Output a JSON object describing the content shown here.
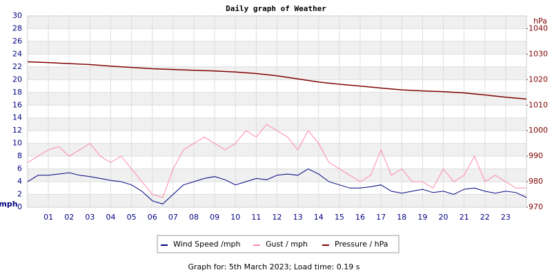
{
  "chart_data": {
    "type": "line",
    "title": "Daily graph of Weather",
    "ylabel": "mph",
    "y2label": "hPa",
    "x": [
      0,
      0.5,
      1,
      1.5,
      2,
      2.5,
      3,
      3.5,
      4,
      4.5,
      5,
      5.5,
      6,
      6.5,
      7,
      7.5,
      8,
      8.5,
      9,
      9.5,
      10,
      10.5,
      11,
      11.5,
      12,
      12.5,
      13,
      13.5,
      14,
      14.5,
      15,
      15.5,
      16,
      16.5,
      17,
      17.5,
      18,
      18.5,
      19,
      19.5,
      20,
      20.5,
      21,
      21.5,
      22,
      22.5,
      23,
      23.5,
      24
    ],
    "xlim": [
      0,
      24
    ],
    "xticks": [
      {
        "value": 1,
        "label": "01"
      },
      {
        "value": 2,
        "label": "02"
      },
      {
        "value": 3,
        "label": "03"
      },
      {
        "value": 4,
        "label": "04"
      },
      {
        "value": 5,
        "label": "05"
      },
      {
        "value": 6,
        "label": "06"
      },
      {
        "value": 7,
        "label": "07"
      },
      {
        "value": 8,
        "label": "08"
      },
      {
        "value": 9,
        "label": "09"
      },
      10,
      11,
      12,
      13,
      14,
      15,
      16,
      17,
      18,
      19,
      20,
      21,
      22,
      23
    ],
    "ylim": [
      0,
      30
    ],
    "yticks": [
      0,
      2,
      4,
      6,
      8,
      10,
      12,
      14,
      16,
      18,
      20,
      22,
      24,
      26,
      28,
      30
    ],
    "y2lim": [
      970,
      1045
    ],
    "y2ticks": [
      970,
      980,
      990,
      1000,
      1010,
      1020,
      1030,
      1040
    ],
    "grid": true,
    "bands": true,
    "series": [
      {
        "name": "Wind Speed /mph",
        "color": "#000080",
        "values": [
          4,
          5,
          5,
          5.2,
          5.4,
          5,
          4.8,
          4.5,
          4.2,
          4,
          3.5,
          2.5,
          1,
          0.5,
          2,
          3.5,
          4,
          4.5,
          4.8,
          4.3,
          3.5,
          4,
          4.5,
          4.3,
          5,
          5.2,
          5,
          6,
          5.2,
          4,
          3.5,
          3,
          3,
          3.2,
          3.5,
          2.5,
          2.2,
          2.5,
          2.8,
          2.3,
          2.5,
          2,
          2.8,
          3,
          2.5,
          2.2,
          2.5,
          2.3,
          1.5
        ]
      },
      {
        "name": "Gust / mph",
        "color": "#ff88aa",
        "values": [
          7,
          8,
          9,
          9.5,
          8,
          9,
          10,
          8,
          7,
          8,
          6,
          4,
          2,
          1.5,
          6,
          9,
          10,
          11,
          10,
          9,
          10,
          12,
          11,
          13,
          12,
          11,
          9,
          12,
          10,
          7,
          6,
          5,
          4,
          5,
          9,
          5,
          6,
          4,
          4,
          3,
          6,
          4,
          5,
          8,
          4,
          5,
          4,
          3,
          3
        ]
      },
      {
        "name": "Pressure / hPa",
        "color": "#800000",
        "axis": "y2",
        "x": [
          0,
          1,
          2,
          3,
          4,
          5,
          6,
          7,
          8,
          9,
          10,
          11,
          12,
          13,
          14,
          15,
          16,
          17,
          18,
          19,
          20,
          21,
          22,
          23,
          24
        ],
        "values": [
          1027,
          1026.7,
          1026.3,
          1025.9,
          1025.3,
          1024.8,
          1024.3,
          1024,
          1023.7,
          1023.4,
          1023,
          1022.4,
          1021.5,
          1020.3,
          1019.1,
          1018.2,
          1017.5,
          1016.7,
          1016,
          1015.6,
          1015.3,
          1014.8,
          1014,
          1013.1,
          1012.4
        ]
      }
    ],
    "footer": "Graph for: 5th March 2023; Load time: 0.19 s"
  }
}
